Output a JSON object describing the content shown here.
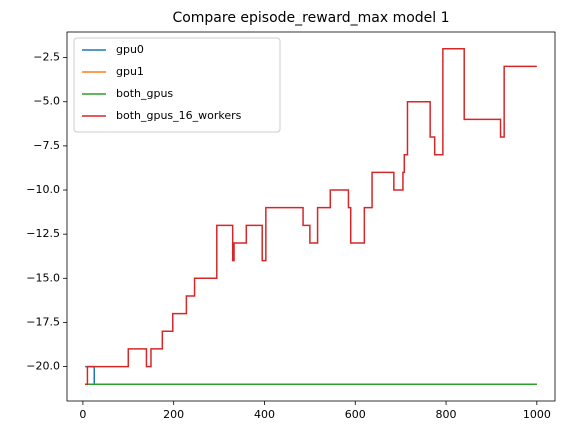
{
  "chart_data": {
    "type": "line",
    "title": "Compare episode_reward_max model 1",
    "series": [
      {
        "name": "gpu0",
        "color": "#1f77b4",
        "x": [
          5,
          25,
          25,
          1000
        ],
        "values": [
          -20,
          -20,
          -21,
          -21
        ]
      },
      {
        "name": "gpu1",
        "color": "#ff7f0e",
        "x": [
          5,
          1000
        ],
        "values": [
          -21,
          -21
        ]
      },
      {
        "name": "both_gpus",
        "color": "#2ca02c",
        "x": [
          5,
          1000
        ],
        "values": [
          -21,
          -21
        ]
      },
      {
        "name": "both_gpus_16_workers",
        "color": "#d62728",
        "x": [
          5,
          10,
          10,
          100,
          100,
          140,
          140,
          150,
          150,
          175,
          175,
          198,
          198,
          228,
          228,
          246,
          246,
          295,
          295,
          330,
          330,
          333,
          333,
          360,
          360,
          395,
          395,
          403,
          403,
          485,
          485,
          500,
          500,
          517,
          517,
          545,
          545,
          585,
          585,
          590,
          590,
          620,
          620,
          637,
          637,
          685,
          685,
          705,
          705,
          708,
          708,
          715,
          715,
          765,
          765,
          775,
          775,
          793,
          793,
          840,
          840,
          920,
          920,
          928,
          928,
          1000
        ],
        "values": [
          -21,
          -21,
          -20,
          -20,
          -19,
          -19,
          -20,
          -20,
          -19,
          -19,
          -18,
          -18,
          -17,
          -17,
          -16,
          -16,
          -15,
          -15,
          -12,
          -12,
          -14,
          -14,
          -13,
          -13,
          -12,
          -12,
          -14,
          -14,
          -11,
          -11,
          -12,
          -12,
          -13,
          -13,
          -11,
          -11,
          -10,
          -10,
          -11,
          -11,
          -13,
          -13,
          -11,
          -11,
          -9,
          -9,
          -10,
          -10,
          -9,
          -9,
          -8,
          -8,
          -5,
          -5,
          -7,
          -7,
          -8,
          -8,
          -2,
          -2,
          -6,
          -6,
          -7,
          -7,
          -3,
          -3
        ]
      }
    ],
    "xlim": [
      -35,
      1040
    ],
    "ylim": [
      -21.95,
      -1.05
    ],
    "xticks": [
      0,
      200,
      400,
      600,
      800,
      1000
    ],
    "yticks": [
      {
        "value": -20,
        "label": "−20.0"
      },
      {
        "value": -17.5,
        "label": "−17.5"
      },
      {
        "value": -15,
        "label": "−15.0"
      },
      {
        "value": -12.5,
        "label": "−12.5"
      },
      {
        "value": -10,
        "label": "−10.0"
      },
      {
        "value": -7.5,
        "label": "−7.5"
      },
      {
        "value": -5,
        "label": "−5.0"
      },
      {
        "value": -2.5,
        "label": "−2.5"
      }
    ],
    "grid": false,
    "legend": "upper left"
  }
}
